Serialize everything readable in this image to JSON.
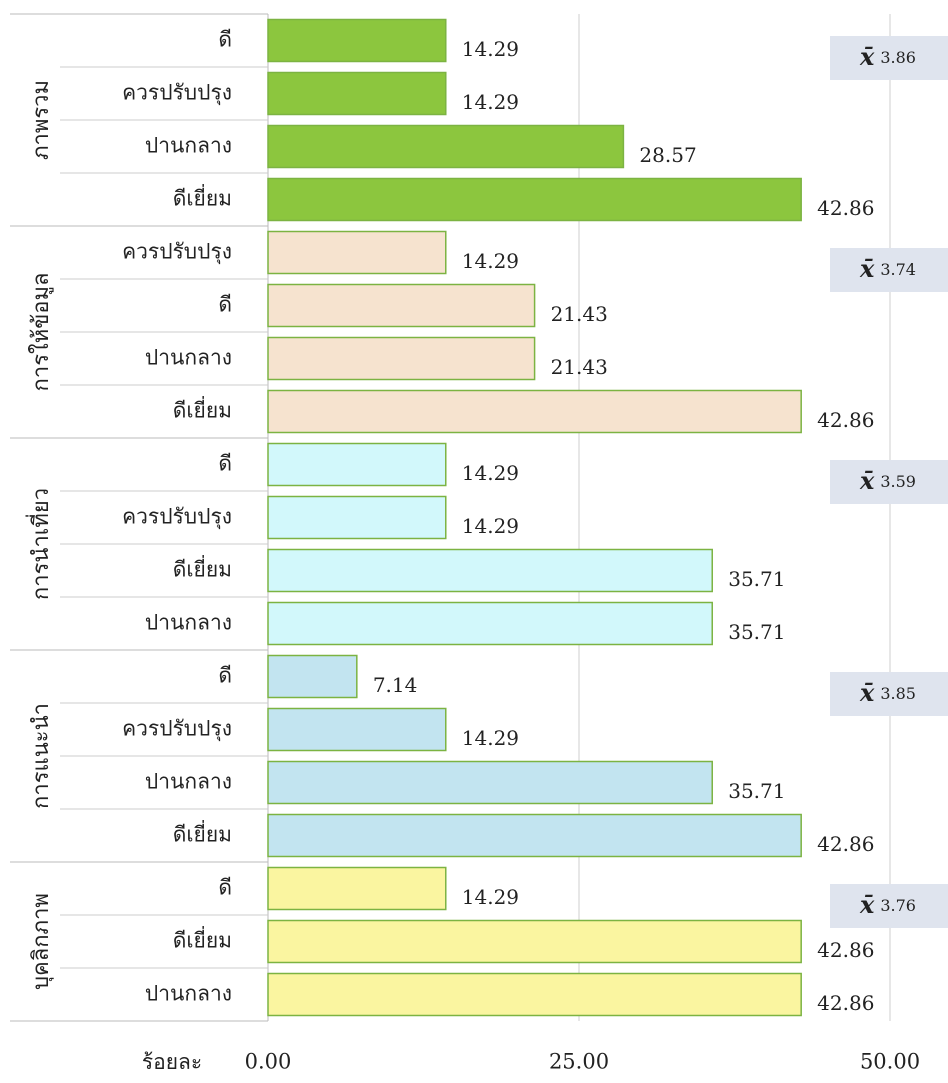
{
  "chart_data": {
    "type": "bar",
    "orientation": "horizontal",
    "xlabel": "ร้อยละ",
    "xlim": [
      0,
      50
    ],
    "xticks": [
      {
        "value": 0,
        "label": "0.00"
      },
      {
        "value": 25,
        "label": "25.00"
      },
      {
        "value": 50,
        "label": "50.00"
      }
    ],
    "grid": true,
    "mean_symbol": "x̄",
    "edge_color": "#7cb342",
    "groups": [
      {
        "name": "ภาพรวม",
        "color": "#8cc63e",
        "categories": [
          "ดี",
          "ควรปรับปรุง",
          "ปานกลาง",
          "ดีเยี่ยม"
        ],
        "values": [
          14.29,
          14.29,
          28.57,
          42.86
        ],
        "mean": 3.86
      },
      {
        "name": "การให้ข้อมูล",
        "color": "#f6e3cf",
        "categories": [
          "ควรปรับปรุง",
          "ดี",
          "ปานกลาง",
          "ดีเยี่ยม"
        ],
        "values": [
          14.29,
          21.43,
          21.43,
          42.86
        ],
        "mean": 3.74
      },
      {
        "name": "การนำเที่ยว",
        "color": "#d2f8fb",
        "categories": [
          "ดี",
          "ควรปรับปรุง",
          "ดีเยี่ยม",
          "ปานกลาง"
        ],
        "values": [
          14.29,
          14.29,
          35.71,
          35.71
        ],
        "mean": 3.59
      },
      {
        "name": "การแนะนำ",
        "color": "#c2e4f0",
        "categories": [
          "ดี",
          "ควรปรับปรุง",
          "ปานกลาง",
          "ดีเยี่ยม"
        ],
        "values": [
          7.14,
          14.29,
          35.71,
          42.86
        ],
        "mean": 3.85
      },
      {
        "name": "บุคลิกภาพ",
        "color": "#faf5a0",
        "categories": [
          "ดี",
          "ดีเยี่ยม",
          "ปานกลาง"
        ],
        "values": [
          14.29,
          42.86,
          42.86
        ],
        "mean": 3.76
      }
    ]
  }
}
